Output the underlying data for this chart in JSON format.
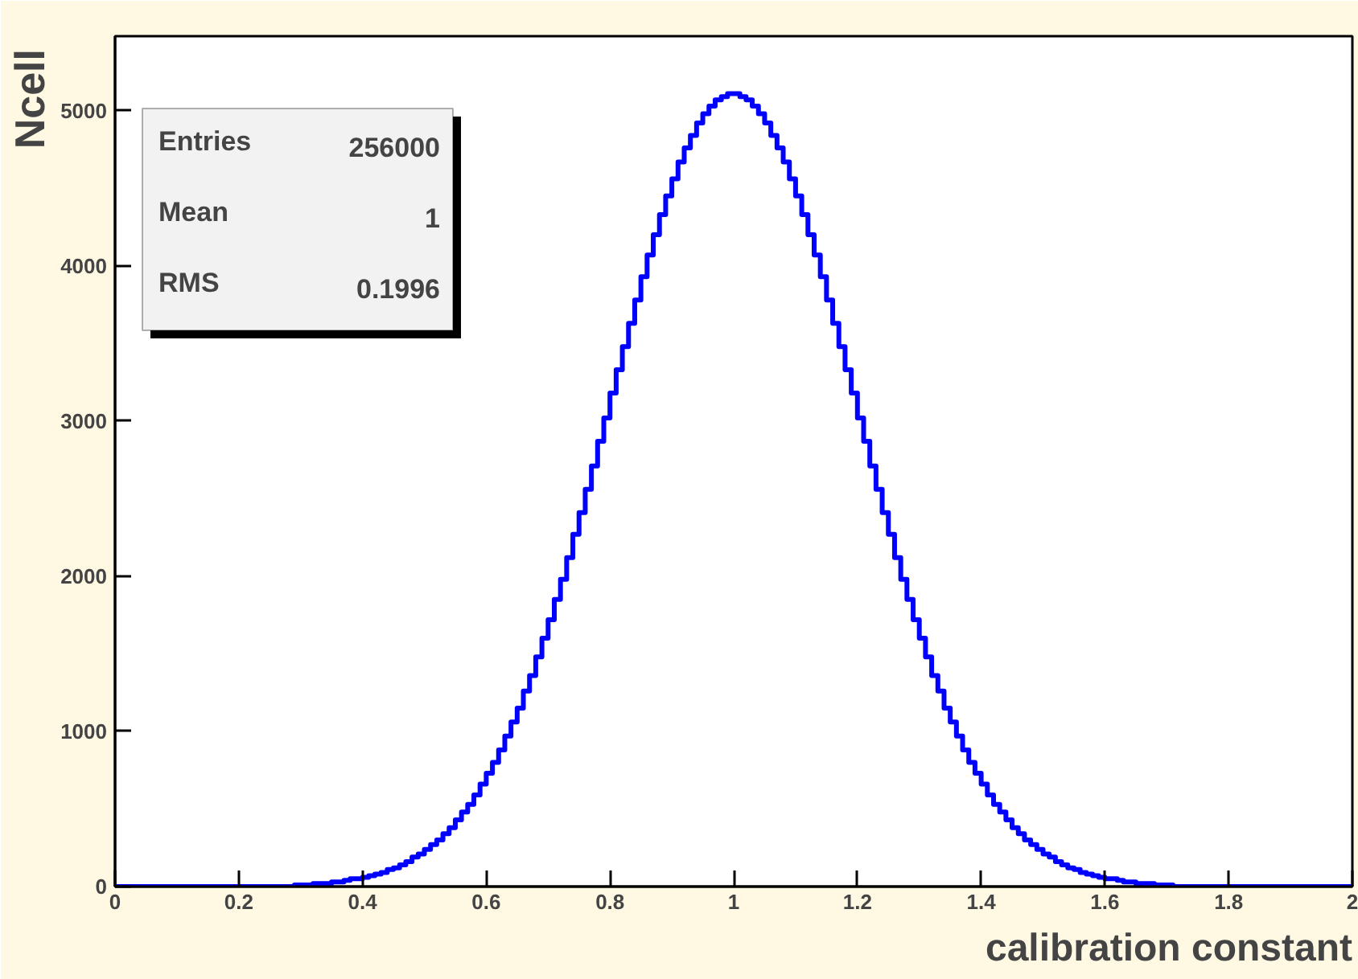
{
  "chart_data": {
    "type": "histogram",
    "xlabel": "calibration constant",
    "ylabel": "Ncell",
    "annotations": [
      "Entries 256000",
      "Mean 1",
      "RMS 0.1996"
    ],
    "color": "#0000ff",
    "bins": [
      0,
      0.01,
      0.02,
      0.03,
      0.04,
      0.05,
      0.06,
      0.07,
      0.08,
      0.09,
      0.1,
      0.11,
      0.12,
      0.13,
      0.14,
      0.15,
      0.16,
      0.17,
      0.18,
      0.19,
      0.2,
      0.21,
      0.22,
      0.23,
      0.24,
      0.25,
      0.26,
      0.27,
      0.28,
      0.29,
      0.3,
      0.31,
      0.32,
      0.33,
      0.34,
      0.35,
      0.36,
      0.37,
      0.38,
      0.39,
      0.4,
      0.41,
      0.42,
      0.43,
      0.44,
      0.45,
      0.46,
      0.47,
      0.48,
      0.49,
      0.5,
      0.51,
      0.52,
      0.53,
      0.54,
      0.55,
      0.56,
      0.57,
      0.58,
      0.59,
      0.6,
      0.61,
      0.62,
      0.63,
      0.64,
      0.65,
      0.66,
      0.67,
      0.68,
      0.69,
      0.7,
      0.71,
      0.72,
      0.73,
      0.74,
      0.75,
      0.76,
      0.77,
      0.78,
      0.79,
      0.8,
      0.81,
      0.82,
      0.83,
      0.84,
      0.85,
      0.86,
      0.87,
      0.88,
      0.89,
      0.9,
      0.91,
      0.92,
      0.93,
      0.94,
      0.95,
      0.96,
      0.97,
      0.98,
      0.99,
      1,
      1.01,
      1.02,
      1.03,
      1.04,
      1.05,
      1.06,
      1.07,
      1.08,
      1.09,
      1.1,
      1.11,
      1.12,
      1.13,
      1.14,
      1.15,
      1.16,
      1.17,
      1.18,
      1.19,
      1.2,
      1.21,
      1.22,
      1.23,
      1.24,
      1.25,
      1.26,
      1.27,
      1.28,
      1.29,
      1.3,
      1.31,
      1.32,
      1.33,
      1.34,
      1.35,
      1.36,
      1.37,
      1.38,
      1.39,
      1.4,
      1.41,
      1.42,
      1.43,
      1.44,
      1.45,
      1.46,
      1.47,
      1.48,
      1.49,
      1.5,
      1.51,
      1.52,
      1.53,
      1.54,
      1.55,
      1.56,
      1.57,
      1.58,
      1.59,
      1.6,
      1.61,
      1.62,
      1.63,
      1.64,
      1.65,
      1.66,
      1.67,
      1.68,
      1.69,
      1.7,
      1.71,
      1.72,
      1.73,
      1.74,
      1.75,
      1.76,
      1.77,
      1.78,
      1.79,
      1.8,
      1.81,
      1.82,
      1.83,
      1.84,
      1.85,
      1.86,
      1.87,
      1.88,
      1.89,
      1.9,
      1.91,
      1.92,
      1.93,
      1.94,
      1.95,
      1.96,
      1.97,
      1.98,
      1.99,
      2
    ],
    "values": [
      0,
      0,
      0,
      0,
      0,
      0,
      0,
      0,
      0,
      0,
      0,
      0,
      0,
      0,
      0,
      0,
      0,
      0,
      0,
      0,
      0,
      0,
      0,
      0,
      0,
      0,
      0,
      0,
      0,
      10,
      10,
      10,
      20,
      20,
      20,
      30,
      30,
      40,
      50,
      50,
      60,
      70,
      80,
      90,
      110,
      120,
      140,
      160,
      190,
      210,
      240,
      270,
      300,
      340,
      380,
      430,
      480,
      530,
      590,
      660,
      730,
      800,
      880,
      970,
      1060,
      1150,
      1260,
      1360,
      1480,
      1600,
      1720,
      1850,
      1980,
      2120,
      2270,
      2410,
      2560,
      2710,
      2870,
      3020,
      3180,
      3330,
      3480,
      3630,
      3780,
      3930,
      4070,
      4200,
      4330,
      4450,
      4560,
      4670,
      4760,
      4840,
      4920,
      4980,
      5030,
      5070,
      5090,
      5110,
      5110,
      5090,
      5070,
      5030,
      4980,
      4920,
      4840,
      4760,
      4670,
      4560,
      4450,
      4330,
      4200,
      4070,
      3930,
      3780,
      3630,
      3480,
      3330,
      3180,
      3020,
      2870,
      2710,
      2560,
      2410,
      2270,
      2120,
      1980,
      1850,
      1720,
      1600,
      1480,
      1360,
      1260,
      1150,
      1060,
      970,
      880,
      800,
      730,
      660,
      590,
      530,
      480,
      430,
      380,
      340,
      300,
      270,
      240,
      210,
      190,
      160,
      140,
      120,
      110,
      90,
      80,
      70,
      60,
      50,
      50,
      40,
      30,
      30,
      20,
      20,
      20,
      10,
      10,
      10,
      0,
      0,
      0,
      0,
      0,
      0,
      0,
      0,
      0,
      0,
      0,
      0,
      0,
      0,
      0,
      0,
      0,
      0,
      0,
      0,
      0,
      0,
      0,
      0,
      0,
      0,
      0,
      0,
      0
    ],
    "xlim": [
      0,
      2
    ],
    "xticks": [
      0,
      0.2,
      0.4,
      0.6,
      0.8,
      1,
      1.2,
      1.4,
      1.6,
      1.8,
      2
    ],
    "ylim": [
      0,
      5480
    ],
    "yticks": [
      0,
      1000,
      2000,
      3000,
      4000,
      5000
    ],
    "grid": false
  }
}
